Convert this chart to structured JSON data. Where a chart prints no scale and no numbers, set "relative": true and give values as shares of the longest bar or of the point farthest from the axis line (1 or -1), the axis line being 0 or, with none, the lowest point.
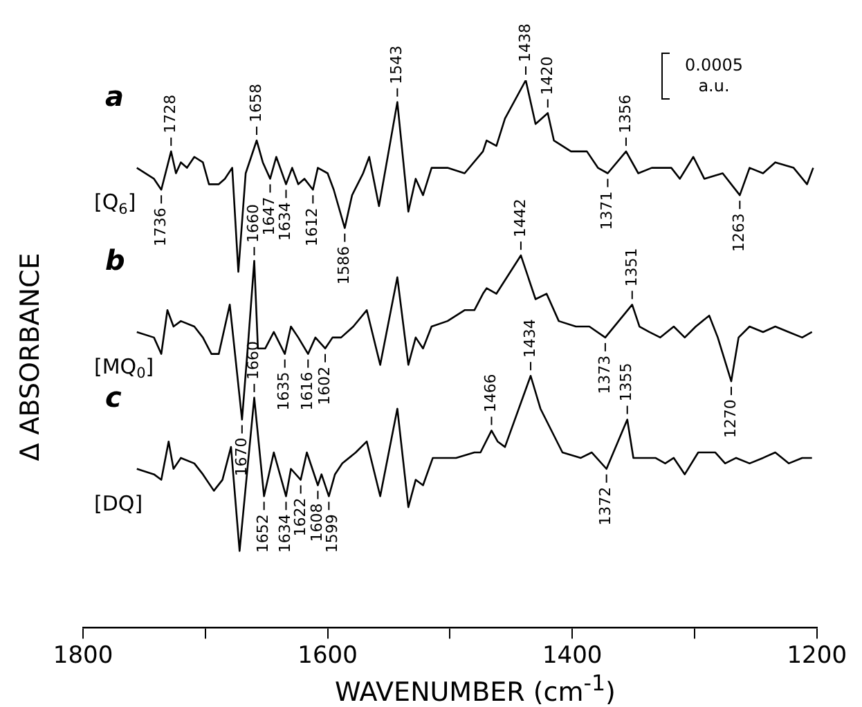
{
  "chart_data": {
    "type": "line",
    "relative": true,
    "xlabel": "WAVENUMBER (cm$^{-1}$)",
    "ylabel": "Δ ABSORBANCE",
    "xlim": [
      1800,
      1200
    ],
    "xticks": [
      1800,
      {
        "value": 1700,
        "label": null
      },
      1600,
      {
        "value": 1500,
        "label": null
      },
      1400,
      {
        "value": 1300,
        "label": null
      },
      1200
    ],
    "grid": false,
    "legend": false,
    "marker": "none",
    "line_style": "solid",
    "series": [
      {
        "name": "a",
        "color": "#000000",
        "x": [
          1756,
          1742,
          1736,
          1728,
          1724,
          1720,
          1715,
          1709,
          1702,
          1697,
          1689,
          1684,
          1678,
          1673,
          1667,
          1658,
          1653,
          1647,
          1642,
          1634,
          1629,
          1624,
          1619,
          1612,
          1608,
          1600,
          1595,
          1586,
          1580,
          1571,
          1566,
          1558,
          1543,
          1534,
          1528,
          1522,
          1515,
          1502,
          1488,
          1473,
          1470,
          1462,
          1455,
          1438,
          1430,
          1420,
          1415,
          1401,
          1388,
          1379,
          1371,
          1356,
          1346,
          1335,
          1319,
          1312,
          1301,
          1292,
          1277,
          1263,
          1255,
          1244,
          1234,
          1219,
          1208,
          1203
        ],
        "values": [
          0.84,
          0.82,
          0.8,
          0.87,
          0.83,
          0.85,
          0.84,
          0.86,
          0.85,
          0.81,
          0.81,
          0.82,
          0.84,
          0.65,
          0.83,
          0.89,
          0.85,
          0.82,
          0.86,
          0.81,
          0.84,
          0.81,
          0.82,
          0.8,
          0.84,
          0.83,
          0.8,
          0.73,
          0.79,
          0.83,
          0.86,
          0.77,
          0.96,
          0.76,
          0.82,
          0.79,
          0.84,
          0.84,
          0.83,
          0.87,
          0.89,
          0.88,
          0.93,
          1.0,
          0.92,
          0.94,
          0.89,
          0.87,
          0.87,
          0.84,
          0.83,
          0.87,
          0.83,
          0.84,
          0.84,
          0.82,
          0.86,
          0.82,
          0.83,
          0.79,
          0.84,
          0.83,
          0.85,
          0.84,
          0.81,
          0.84
        ]
      },
      {
        "name": "b",
        "color": "#000000",
        "x": [
          1756,
          1742,
          1736,
          1731,
          1726,
          1720,
          1709,
          1702,
          1695,
          1689,
          1680,
          1670,
          1665,
          1660,
          1657,
          1651,
          1644,
          1635,
          1630,
          1624,
          1616,
          1610,
          1602,
          1596,
          1589,
          1579,
          1568,
          1557,
          1543,
          1534,
          1528,
          1522,
          1515,
          1502,
          1488,
          1480,
          1473,
          1470,
          1462,
          1442,
          1430,
          1421,
          1411,
          1397,
          1386,
          1373,
          1351,
          1345,
          1337,
          1328,
          1317,
          1308,
          1299,
          1288,
          1281,
          1270,
          1264,
          1255,
          1244,
          1234,
          1223,
          1212,
          1204
        ],
        "values": [
          0.54,
          0.53,
          0.5,
          0.58,
          0.55,
          0.56,
          0.55,
          0.53,
          0.5,
          0.5,
          0.59,
          0.38,
          0.52,
          0.67,
          0.51,
          0.51,
          0.54,
          0.5,
          0.55,
          0.53,
          0.5,
          0.53,
          0.51,
          0.53,
          0.53,
          0.55,
          0.58,
          0.48,
          0.64,
          0.48,
          0.53,
          0.51,
          0.55,
          0.56,
          0.58,
          0.58,
          0.61,
          0.62,
          0.61,
          0.68,
          0.6,
          0.61,
          0.56,
          0.55,
          0.55,
          0.53,
          0.59,
          0.55,
          0.54,
          0.53,
          0.55,
          0.53,
          0.55,
          0.57,
          0.53,
          0.45,
          0.53,
          0.55,
          0.54,
          0.55,
          0.54,
          0.53,
          0.54
        ]
      },
      {
        "name": "c",
        "color": "#000000",
        "x": [
          1756,
          1742,
          1736,
          1730,
          1726,
          1720,
          1709,
          1702,
          1693,
          1686,
          1679,
          1672,
          1660,
          1652,
          1644,
          1634,
          1630,
          1622,
          1617,
          1608,
          1605,
          1599,
          1594,
          1588,
          1577,
          1568,
          1557,
          1543,
          1534,
          1528,
          1522,
          1514,
          1495,
          1480,
          1475,
          1466,
          1461,
          1455,
          1434,
          1426,
          1408,
          1393,
          1384,
          1372,
          1355,
          1350,
          1339,
          1332,
          1324,
          1317,
          1308,
          1297,
          1283,
          1275,
          1266,
          1255,
          1244,
          1234,
          1223,
          1212,
          1204
        ],
        "values": [
          0.29,
          0.28,
          0.27,
          0.34,
          0.29,
          0.31,
          0.3,
          0.28,
          0.25,
          0.27,
          0.33,
          0.14,
          0.42,
          0.24,
          0.32,
          0.24,
          0.29,
          0.27,
          0.32,
          0.26,
          0.28,
          0.24,
          0.28,
          0.3,
          0.32,
          0.34,
          0.24,
          0.4,
          0.22,
          0.27,
          0.26,
          0.31,
          0.31,
          0.32,
          0.32,
          0.36,
          0.34,
          0.33,
          0.46,
          0.4,
          0.32,
          0.31,
          0.32,
          0.29,
          0.38,
          0.31,
          0.31,
          0.31,
          0.3,
          0.31,
          0.28,
          0.32,
          0.32,
          0.3,
          0.31,
          0.3,
          0.31,
          0.32,
          0.3,
          0.31,
          0.31
        ]
      }
    ],
    "annotations": [
      "[Q$_{6}$]",
      "[MQ$_{0}$]",
      "[DQ]",
      "0.0005 a.u.",
      {
        "text": "1736",
        "x": 1736,
        "y": 0.8
      },
      {
        "text": "1728",
        "x": 1728,
        "y": 0.87
      },
      {
        "text": "1658",
        "x": 1658,
        "y": 0.89
      },
      {
        "text": "1647",
        "x": 1647,
        "y": 0.82
      },
      {
        "text": "1634",
        "x": 1634,
        "y": 0.81
      },
      {
        "text": "1612",
        "x": 1612,
        "y": 0.8
      },
      {
        "text": "1586",
        "x": 1586,
        "y": 0.73
      },
      {
        "text": "1543",
        "x": 1543,
        "y": 0.96
      },
      {
        "text": "1438",
        "x": 1438,
        "y": 1.0
      },
      {
        "text": "1420",
        "x": 1420,
        "y": 0.94
      },
      {
        "text": "1371",
        "x": 1371,
        "y": 0.83
      },
      {
        "text": "1356",
        "x": 1356,
        "y": 0.87
      },
      {
        "text": "1263",
        "x": 1263,
        "y": 0.79
      },
      {
        "text": "1670",
        "x": 1670,
        "y": 0.38
      },
      {
        "text": "1660",
        "x": 1660,
        "y": 0.67
      },
      {
        "text": "1635",
        "x": 1635,
        "y": 0.5
      },
      {
        "text": "1616",
        "x": 1616,
        "y": 0.5
      },
      {
        "text": "1602",
        "x": 1602,
        "y": 0.51
      },
      {
        "text": "1442",
        "x": 1442,
        "y": 0.68
      },
      {
        "text": "1373",
        "x": 1373,
        "y": 0.53
      },
      {
        "text": "1351",
        "x": 1351,
        "y": 0.59
      },
      {
        "text": "1270",
        "x": 1270,
        "y": 0.45
      },
      {
        "text": "1660",
        "x": 1660,
        "y": 0.42
      },
      {
        "text": "1652",
        "x": 1652,
        "y": 0.24
      },
      {
        "text": "1634",
        "x": 1634,
        "y": 0.24
      },
      {
        "text": "1622",
        "x": 1622,
        "y": 0.27
      },
      {
        "text": "1608",
        "x": 1608,
        "y": 0.26
      },
      {
        "text": "1599",
        "x": 1599,
        "y": 0.24
      },
      {
        "text": "1466",
        "x": 1466,
        "y": 0.36
      },
      {
        "text": "1434",
        "x": 1434,
        "y": 0.46
      },
      {
        "text": "1372",
        "x": 1372,
        "y": 0.29
      },
      {
        "text": "1355",
        "x": 1355,
        "y": 0.38
      }
    ]
  }
}
